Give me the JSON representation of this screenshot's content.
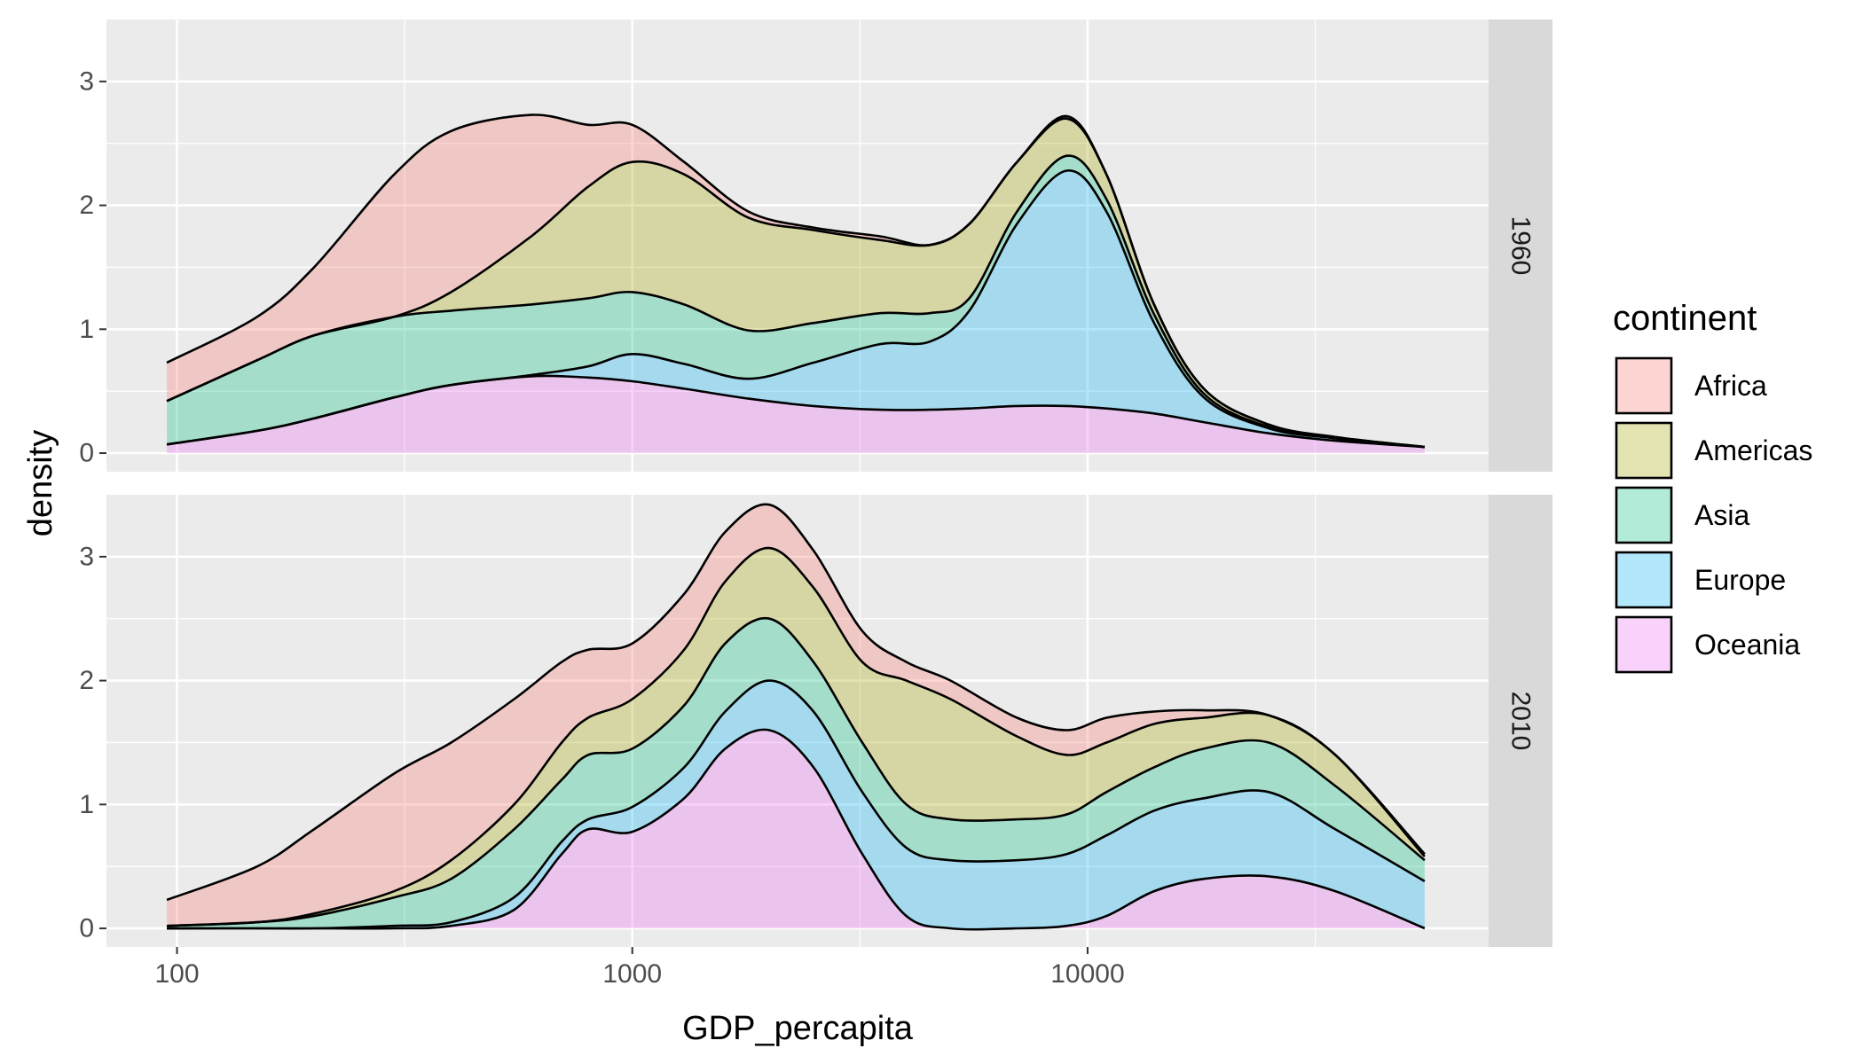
{
  "chart_data": {
    "type": "area",
    "subtype": "stacked-density",
    "xlabel": "GDP_percapita",
    "ylabel": "density",
    "x_scale": "log10",
    "x_ticks": [
      100,
      1000,
      10000
    ],
    "x_tick_labels": [
      "100",
      "1000",
      "10000"
    ],
    "xlim": [
      70,
      76000
    ],
    "ylim": [
      -0.15,
      3.5
    ],
    "y_ticks": [
      0,
      1,
      2,
      3
    ],
    "y_tick_labels": [
      "0",
      "1",
      "2",
      "3"
    ],
    "grid": true,
    "legend": {
      "title": "continent",
      "placement": "right",
      "entries": [
        "Africa",
        "Americas",
        "Asia",
        "Europe",
        "Oceania"
      ]
    },
    "colors": {
      "Africa": "#F8766D",
      "Americas": "#A3A500",
      "Asia": "#00BF7D",
      "Europe": "#00B0F6",
      "Oceania": "#E76BF3",
      "panel_bg": "#EBEBEB",
      "grid": "#FFFFFF",
      "strip_bg": "#D9D9D9",
      "outline": "#000000",
      "fill_alpha": "0.3"
    },
    "stack_order_bottom_to_top": [
      "Oceania",
      "Europe",
      "Asia",
      "Americas",
      "Africa"
    ],
    "facets": [
      {
        "strip": "1960",
        "x": [
          95,
          150,
          200,
          300,
          400,
          600,
          800,
          1000,
          1300,
          1800,
          2500,
          3500,
          4500,
          5500,
          7000,
          9000,
          11000,
          14000,
          18000,
          25000,
          35000,
          55000
        ],
        "series": [
          {
            "name": "Oceania",
            "cumulative": [
              0.07,
              0.18,
              0.28,
              0.45,
              0.55,
              0.62,
              0.61,
              0.58,
              0.52,
              0.44,
              0.38,
              0.35,
              0.35,
              0.36,
              0.38,
              0.38,
              0.36,
              0.32,
              0.25,
              0.16,
              0.1,
              0.05
            ]
          },
          {
            "name": "Europe",
            "cumulative": [
              0.07,
              0.18,
              0.28,
              0.45,
              0.55,
              0.63,
              0.7,
              0.8,
              0.72,
              0.6,
              0.73,
              0.88,
              0.9,
              1.15,
              1.85,
              2.28,
              1.95,
              1.05,
              0.45,
              0.2,
              0.12,
              0.05
            ]
          },
          {
            "name": "Asia",
            "cumulative": [
              0.42,
              0.75,
              0.95,
              1.1,
              1.15,
              1.2,
              1.25,
              1.3,
              1.2,
              0.99,
              1.05,
              1.13,
              1.13,
              1.25,
              1.95,
              2.4,
              2.05,
              1.12,
              0.48,
              0.21,
              0.12,
              0.05
            ]
          },
          {
            "name": "Americas",
            "cumulative": [
              0.42,
              0.75,
              0.95,
              1.1,
              1.3,
              1.75,
              2.15,
              2.35,
              2.25,
              1.9,
              1.8,
              1.72,
              1.68,
              1.85,
              2.35,
              2.7,
              2.25,
              1.2,
              0.52,
              0.23,
              0.13,
              0.05
            ]
          },
          {
            "name": "Africa",
            "cumulative": [
              0.73,
              1.1,
              1.5,
              2.25,
              2.6,
              2.73,
              2.65,
              2.65,
              2.35,
              1.95,
              1.82,
              1.75,
              1.68,
              1.85,
              2.35,
              2.72,
              2.25,
              1.2,
              0.52,
              0.23,
              0.13,
              0.05
            ]
          }
        ]
      },
      {
        "strip": "2010",
        "x": [
          95,
          150,
          200,
          300,
          400,
          550,
          700,
          800,
          1000,
          1300,
          1600,
          2000,
          2500,
          3200,
          4000,
          5000,
          7000,
          9000,
          11000,
          14000,
          18000,
          25000,
          35000,
          55000
        ],
        "series": [
          {
            "name": "Oceania",
            "cumulative": [
              0.0,
              0.0,
              0.0,
              0.0,
              0.02,
              0.15,
              0.6,
              0.8,
              0.78,
              1.05,
              1.45,
              1.6,
              1.3,
              0.6,
              0.1,
              0.0,
              0.0,
              0.02,
              0.1,
              0.3,
              0.4,
              0.42,
              0.3,
              0.0
            ]
          },
          {
            "name": "Europe",
            "cumulative": [
              0.0,
              0.0,
              0.0,
              0.02,
              0.05,
              0.25,
              0.7,
              0.88,
              0.98,
              1.3,
              1.75,
              2.0,
              1.75,
              1.1,
              0.65,
              0.55,
              0.55,
              0.6,
              0.75,
              0.95,
              1.05,
              1.1,
              0.8,
              0.38
            ]
          },
          {
            "name": "Asia",
            "cumulative": [
              0.02,
              0.05,
              0.1,
              0.25,
              0.4,
              0.8,
              1.2,
              1.4,
              1.45,
              1.8,
              2.3,
              2.5,
              2.15,
              1.5,
              1.0,
              0.88,
              0.88,
              0.92,
              1.1,
              1.3,
              1.45,
              1.5,
              1.15,
              0.55
            ]
          },
          {
            "name": "Americas",
            "cumulative": [
              0.02,
              0.05,
              0.12,
              0.3,
              0.55,
              1.0,
              1.5,
              1.7,
              1.85,
              2.25,
              2.8,
              3.07,
              2.75,
              2.15,
              2.0,
              1.85,
              1.55,
              1.4,
              1.5,
              1.65,
              1.7,
              1.72,
              1.4,
              0.58
            ]
          },
          {
            "name": "Africa",
            "cumulative": [
              0.23,
              0.5,
              0.8,
              1.25,
              1.5,
              1.85,
              2.15,
              2.25,
              2.3,
              2.7,
              3.2,
              3.42,
              3.05,
              2.4,
              2.15,
              2.0,
              1.7,
              1.6,
              1.7,
              1.75,
              1.76,
              1.72,
              1.4,
              0.6
            ]
          }
        ]
      }
    ]
  }
}
